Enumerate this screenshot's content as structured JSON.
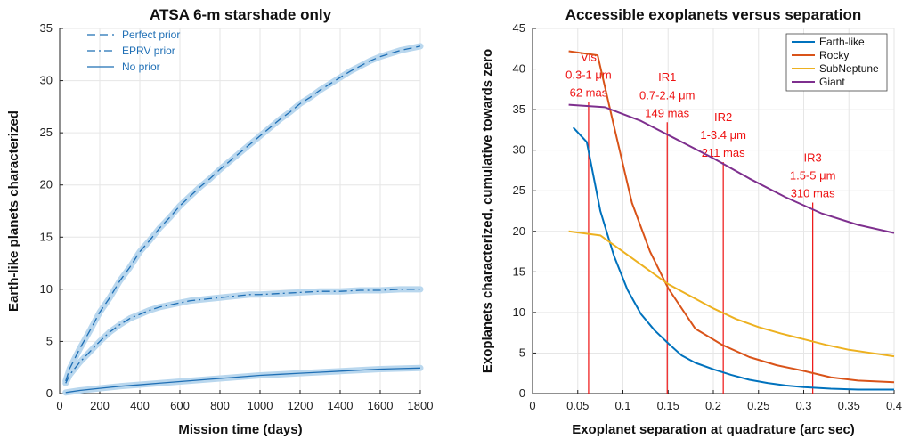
{
  "chart_data": [
    {
      "type": "line",
      "title": "ATSA 6-m starshade only",
      "xlabel": "Mission time (days)",
      "ylabel": "Earth-like planets characterized",
      "xlim": [
        0,
        1800
      ],
      "ylim": [
        0,
        35
      ],
      "xticks": [
        0,
        200,
        400,
        600,
        800,
        1000,
        1200,
        1400,
        1600,
        1800
      ],
      "yticks": [
        0,
        5,
        10,
        15,
        20,
        25,
        30,
        35
      ],
      "grid": true,
      "legend": "top-left",
      "colors": {
        "line": "#1f6fb5",
        "band": "#b9d7ee"
      },
      "series": [
        {
          "name": "Perfect prior",
          "style": "dashed",
          "x": [
            30,
            50,
            100,
            150,
            200,
            250,
            300,
            350,
            400,
            450,
            500,
            550,
            600,
            650,
            700,
            750,
            800,
            850,
            900,
            950,
            1000,
            1050,
            1100,
            1150,
            1200,
            1250,
            1300,
            1350,
            1400,
            1450,
            1500,
            1550,
            1600,
            1650,
            1700,
            1750,
            1800
          ],
          "values": [
            1.2,
            2.4,
            4.3,
            6.0,
            7.8,
            9.2,
            10.8,
            12.1,
            13.6,
            14.7,
            15.9,
            16.9,
            18.0,
            18.9,
            19.8,
            20.6,
            21.5,
            22.3,
            23.1,
            23.9,
            24.7,
            25.5,
            26.3,
            27.0,
            27.8,
            28.4,
            29.1,
            29.7,
            30.3,
            30.9,
            31.4,
            31.9,
            32.3,
            32.6,
            32.9,
            33.1,
            33.3
          ]
        },
        {
          "name": "EPRV prior",
          "style": "dashdot",
          "x": [
            30,
            50,
            100,
            150,
            200,
            250,
            300,
            350,
            400,
            450,
            500,
            550,
            600,
            650,
            700,
            750,
            800,
            850,
            900,
            950,
            1000,
            1100,
            1200,
            1300,
            1400,
            1500,
            1600,
            1700,
            1800
          ],
          "values": [
            1.0,
            1.8,
            3.0,
            4.0,
            5.0,
            5.9,
            6.6,
            7.2,
            7.6,
            8.0,
            8.3,
            8.5,
            8.7,
            8.9,
            9.0,
            9.1,
            9.2,
            9.3,
            9.4,
            9.5,
            9.5,
            9.6,
            9.7,
            9.8,
            9.8,
            9.9,
            9.9,
            10.0,
            10.0
          ]
        },
        {
          "name": "No prior",
          "style": "solid",
          "x": [
            30,
            100,
            200,
            300,
            400,
            500,
            600,
            700,
            800,
            900,
            1000,
            1100,
            1200,
            1300,
            1400,
            1500,
            1600,
            1700,
            1800
          ],
          "values": [
            0.1,
            0.3,
            0.5,
            0.7,
            0.85,
            1.0,
            1.15,
            1.3,
            1.45,
            1.6,
            1.75,
            1.85,
            1.95,
            2.05,
            2.15,
            2.25,
            2.35,
            2.4,
            2.45
          ]
        }
      ]
    },
    {
      "type": "line",
      "title": "Accessible exoplanets versus separation",
      "xlabel": "Exoplanet separation at quadrature (arc sec)",
      "ylabel": "Exoplanets characterized, cumulative towards zero",
      "xlim": [
        0,
        0.4
      ],
      "ylim": [
        0,
        45
      ],
      "xticks": [
        0,
        0.05,
        0.1,
        0.15,
        0.2,
        0.25,
        0.3,
        0.35,
        0.4
      ],
      "yticks": [
        0,
        5,
        10,
        15,
        20,
        25,
        30,
        35,
        40,
        45
      ],
      "grid": true,
      "legend": "top-right",
      "series": [
        {
          "name": "Earth-like",
          "color": "#0072bd",
          "x": [
            0.045,
            0.06,
            0.075,
            0.09,
            0.105,
            0.12,
            0.135,
            0.15,
            0.165,
            0.18,
            0.2,
            0.22,
            0.24,
            0.26,
            0.28,
            0.3,
            0.33,
            0.36,
            0.4
          ],
          "values": [
            32.8,
            31.0,
            22.5,
            17.0,
            12.8,
            9.8,
            7.8,
            6.2,
            4.7,
            3.8,
            3.0,
            2.3,
            1.7,
            1.3,
            1.0,
            0.8,
            0.6,
            0.5,
            0.5
          ]
        },
        {
          "name": "Rocky",
          "color": "#d95319",
          "x": [
            0.04,
            0.072,
            0.09,
            0.11,
            0.13,
            0.15,
            0.18,
            0.21,
            0.24,
            0.27,
            0.3,
            0.33,
            0.36,
            0.4
          ],
          "values": [
            42.2,
            41.7,
            33.0,
            23.5,
            17.5,
            13.0,
            8.0,
            6.0,
            4.5,
            3.5,
            2.8,
            2.0,
            1.6,
            1.4
          ]
        },
        {
          "name": "SubNeptune",
          "color": "#edb120",
          "x": [
            0.04,
            0.075,
            0.1,
            0.125,
            0.15,
            0.175,
            0.2,
            0.225,
            0.25,
            0.275,
            0.3,
            0.325,
            0.35,
            0.375,
            0.4
          ],
          "values": [
            20.0,
            19.5,
            17.5,
            15.5,
            13.5,
            12.0,
            10.5,
            9.2,
            8.2,
            7.4,
            6.7,
            6.0,
            5.4,
            5.0,
            4.6
          ]
        },
        {
          "name": "Giant",
          "color": "#7e2f8e",
          "x": [
            0.04,
            0.08,
            0.12,
            0.16,
            0.2,
            0.24,
            0.28,
            0.32,
            0.36,
            0.4
          ],
          "values": [
            35.6,
            35.3,
            33.6,
            31.3,
            29.0,
            26.5,
            24.2,
            22.2,
            20.8,
            19.8
          ]
        }
      ],
      "vlines": [
        {
          "x": 0.062,
          "label": [
            "Vis",
            "0.3-1 μm",
            "62 mas"
          ],
          "label_y": [
            41,
            38.8,
            36.6
          ]
        },
        {
          "x": 0.149,
          "label": [
            "IR1",
            "0.7-2.4 μm",
            "149 mas"
          ],
          "label_y": [
            38.5,
            36.3,
            34.1
          ]
        },
        {
          "x": 0.211,
          "label": [
            "IR2",
            "1-3.4 μm",
            "211 mas"
          ],
          "label_y": [
            33.6,
            31.4,
            29.2
          ]
        },
        {
          "x": 0.31,
          "label": [
            "IR3",
            "1.5-5 μm",
            "310 mas"
          ],
          "label_y": [
            28.6,
            26.4,
            24.2
          ]
        }
      ],
      "vline_color": "#e11"
    }
  ]
}
